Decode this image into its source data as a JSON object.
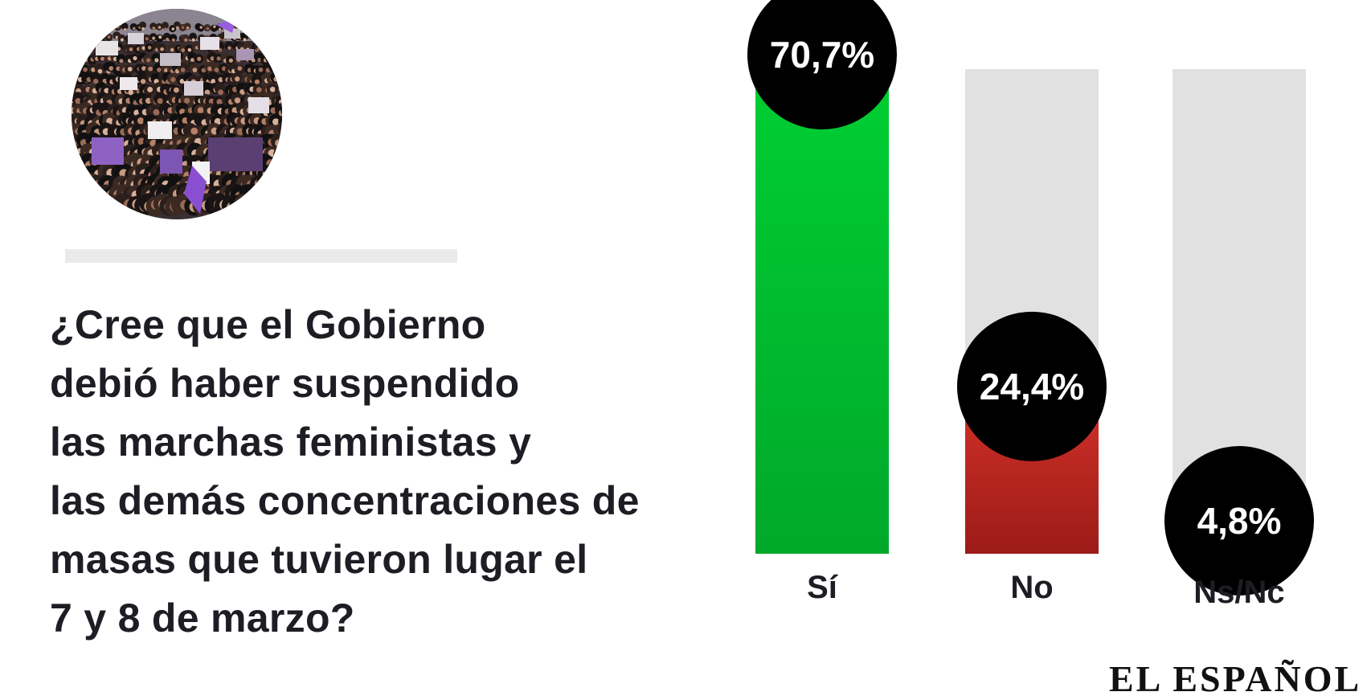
{
  "question": {
    "lines": [
      "¿Cree que el Gobierno",
      "debió haber suspendido",
      "las marchas feministas y",
      "las demás concentraciones de",
      "masas que tuvieron lugar el",
      "7 y 8 de marzo?"
    ]
  },
  "brand": {
    "logo_text": "EL ESPAÑOL"
  },
  "colors": {
    "si": "#00b82c",
    "no": "#b4231d",
    "nsnc": "#3a3a3a",
    "track": "#e1e1e1",
    "bubble": "#000000",
    "text": "#1d1d24"
  },
  "chart_data": {
    "type": "bar",
    "categories": [
      "Sí",
      "No",
      "Ns/Nc"
    ],
    "values": [
      70.7,
      24.4,
      4.8
    ],
    "value_labels": [
      "70,7%",
      "24,4%",
      "4,8%"
    ],
    "ylim": [
      0,
      70.7
    ],
    "unit": "%",
    "grid": false,
    "legend": "none"
  }
}
